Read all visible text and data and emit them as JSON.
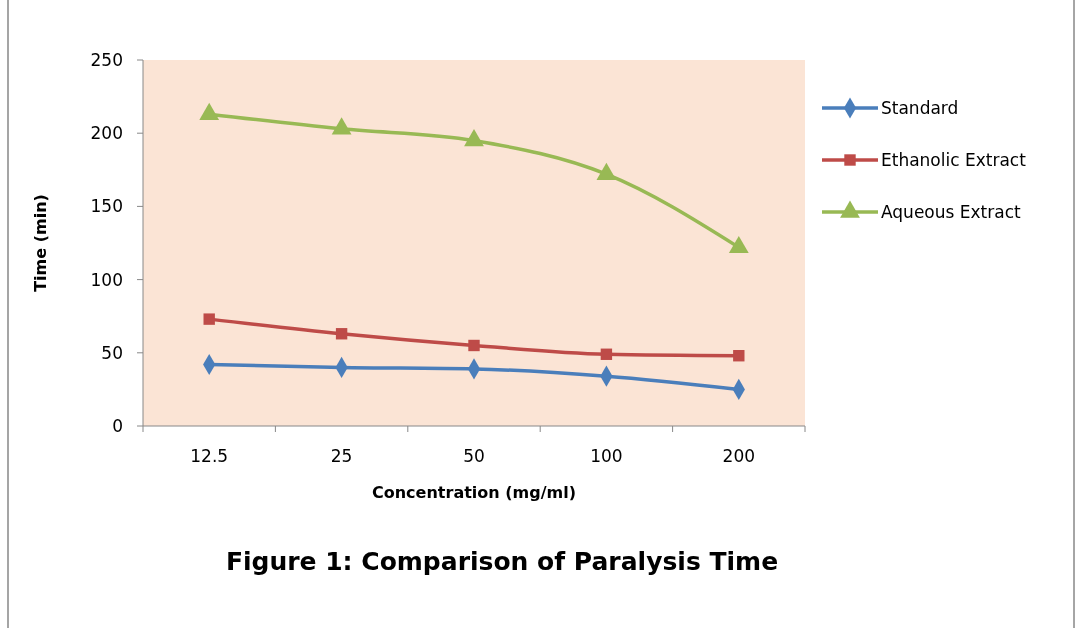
{
  "chart_data": {
    "type": "line",
    "title": "Figure 1: Comparison of Paralysis Time",
    "xlabel": "Concentration (mg/ml)",
    "ylabel": "Time (min)",
    "categories": [
      "12.5",
      "25",
      "50",
      "100",
      "200"
    ],
    "series": [
      {
        "name": "Standard",
        "color": "#4a7ebb",
        "marker": "diamond",
        "values": [
          42,
          40,
          39,
          34,
          25
        ]
      },
      {
        "name": "Ethanolic Extract",
        "color": "#be4b48",
        "marker": "square",
        "values": [
          73,
          63,
          55,
          49,
          48
        ]
      },
      {
        "name": "Aqueous Extract",
        "color": "#98b954",
        "marker": "triangle",
        "values": [
          213,
          203,
          195,
          172,
          122
        ]
      }
    ],
    "ylim": [
      0,
      250
    ],
    "yticks": [
      0,
      50,
      100,
      150,
      200,
      250
    ],
    "grid": false,
    "legend": "right"
  }
}
